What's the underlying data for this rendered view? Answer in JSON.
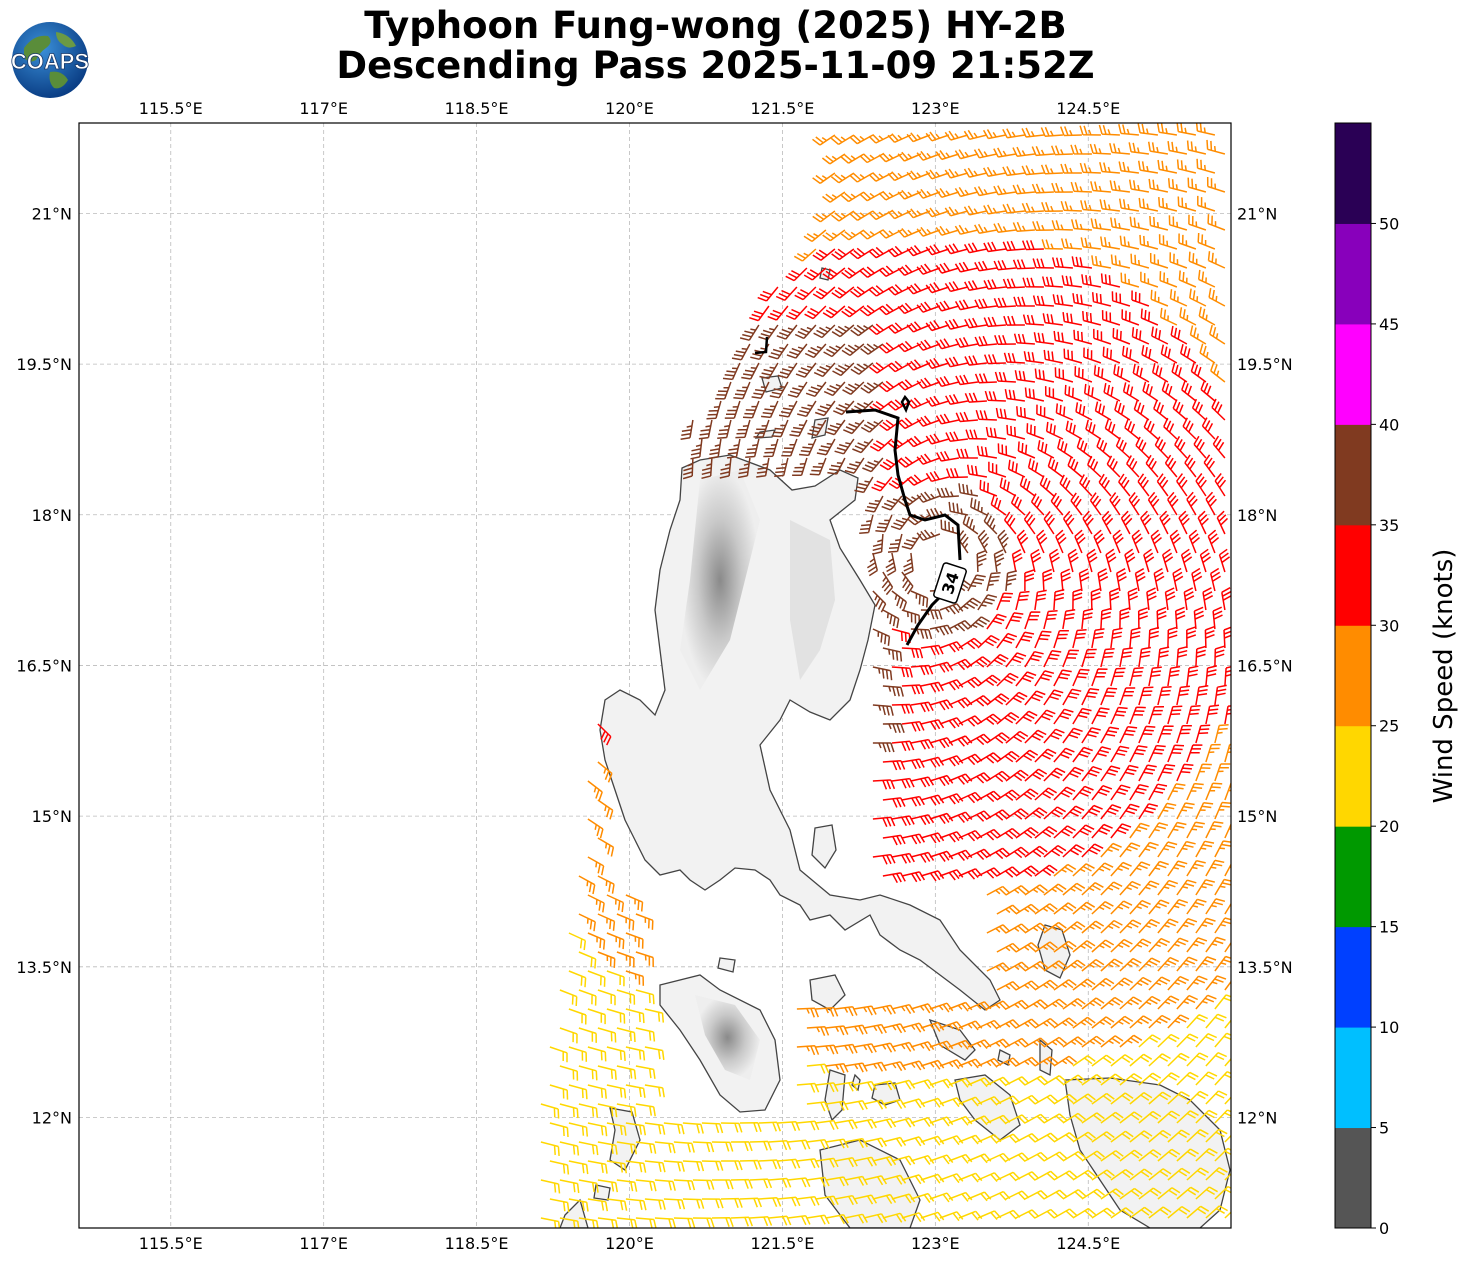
{
  "header": {
    "title_line1": "Typhoon Fung-wong (2025) HY-2B",
    "title_line2": "Descending Pass 2025-11-09 21:52Z",
    "logo_text": "COAPS"
  },
  "map": {
    "lon_labels": [
      "115.5°E",
      "117°E",
      "118.5°E",
      "120°E",
      "121.5°E",
      "123°E",
      "124.5°E"
    ],
    "lat_labels": [
      "21°N",
      "19.5°N",
      "18°N",
      "16.5°N",
      "15°N",
      "13.5°N",
      "12°N"
    ],
    "lon_values": [
      115.5,
      117,
      118.5,
      120,
      121.5,
      123,
      124.5
    ],
    "lat_values": [
      21,
      19.5,
      18,
      16.5,
      15,
      13.5,
      12
    ],
    "extent": {
      "lon_min": 114.6,
      "lon_max": 125.9,
      "lat_min": 10.9,
      "lat_max": 21.9
    },
    "track_label": "34",
    "land_color": "#e9e9e9",
    "coast_color": "#444444",
    "track_color": "#000000"
  },
  "colorbar": {
    "title": "Wind Speed (knots)",
    "tick_labels": [
      "0",
      "5",
      "10",
      "15",
      "20",
      "25",
      "30",
      "35",
      "40",
      "45",
      "50"
    ],
    "colors": [
      "#555555",
      "#00bfff",
      "#0040ff",
      "#009900",
      "#ffd700",
      "#ff8c00",
      "#ff0000",
      "#803a20",
      "#ff00ff",
      "#8800bb",
      "#2a0055"
    ]
  }
}
